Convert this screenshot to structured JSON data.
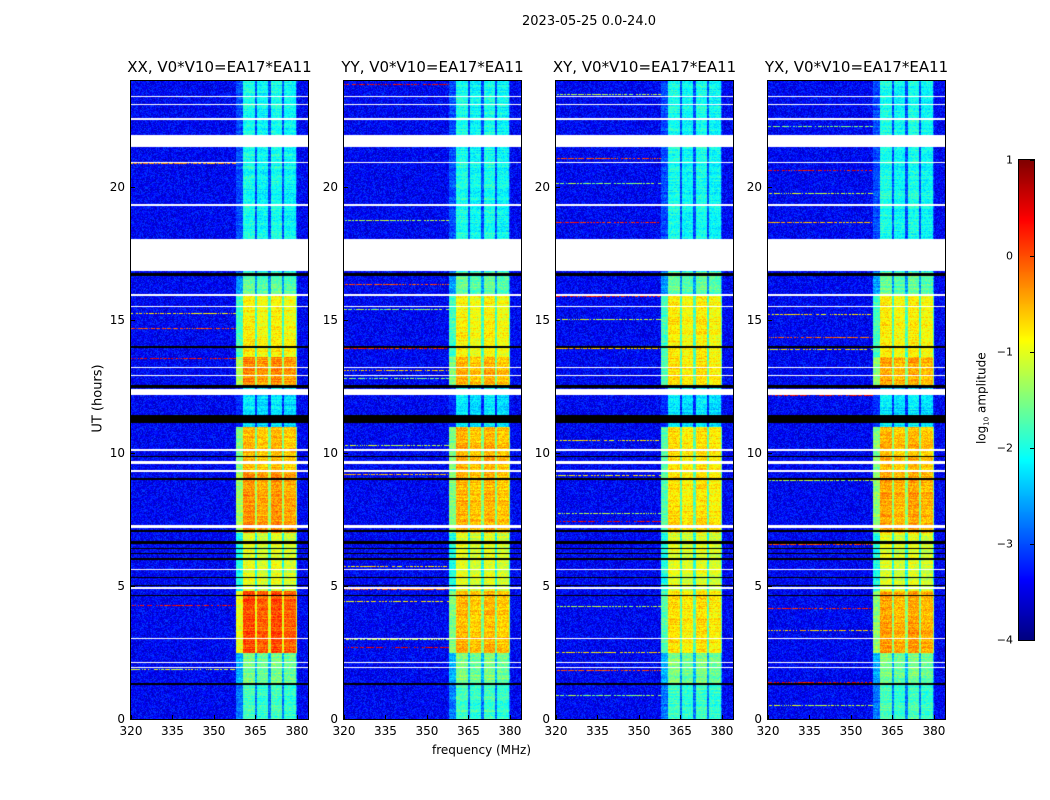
{
  "chart_data": {
    "type": "heatmap",
    "title": "2023-05-25 0.0-24.0",
    "xlabel": "frequency (MHz)",
    "ylabel": "UT (hours)",
    "xlim": [
      320,
      384
    ],
    "ylim": [
      0,
      24
    ],
    "xticks": [
      320,
      335,
      350,
      365,
      380
    ],
    "yticks": [
      0,
      5,
      10,
      15,
      20
    ],
    "colorbar": {
      "label_main": "log",
      "label_sub": "10",
      "label_rest": " amplitude",
      "range": [
        -4,
        1
      ],
      "ticks": [
        1,
        0,
        -1,
        -2,
        -3,
        -4
      ],
      "tick_labels": [
        "1",
        "0",
        "−1",
        "−2",
        "−3",
        "−4"
      ],
      "colormap": "jet"
    },
    "background_level": -3.4,
    "bright_subbands_mhz": [
      [
        360.5,
        364.8
      ],
      [
        365.5,
        369.4
      ],
      [
        370.6,
        374.5
      ],
      [
        375.5,
        379.5
      ]
    ],
    "time_segments": [
      {
        "t": [
          0.0,
          1.3
        ],
        "level": -1.8
      },
      {
        "t": [
          1.3,
          2.5
        ],
        "level": -1.5
      },
      {
        "t": [
          2.5,
          4.8
        ],
        "level": 0.0
      },
      {
        "t": [
          4.8,
          7.0
        ],
        "level": -1.0
      },
      {
        "t": [
          7.0,
          9.2
        ],
        "level": -0.3
      },
      {
        "t": [
          9.2,
          11.0
        ],
        "level": -0.5
      },
      {
        "t": [
          11.0,
          12.5
        ],
        "level": -2.2
      },
      {
        "t": [
          12.5,
          13.6
        ],
        "level": -0.3
      },
      {
        "t": [
          13.6,
          15.9
        ],
        "level": -0.8
      },
      {
        "t": [
          15.9,
          16.8
        ],
        "level": -1.6
      },
      {
        "t": [
          16.8,
          24.0
        ],
        "level": -2.0
      }
    ],
    "flagged_hours": [
      [
        16.85,
        18.05
      ],
      [
        21.5,
        21.95
      ],
      [
        20.9,
        20.95
      ],
      [
        19.3,
        19.36
      ],
      [
        22.55,
        22.6
      ],
      [
        23.1,
        23.15
      ],
      [
        23.4,
        23.45
      ],
      [
        15.9,
        16.0
      ],
      [
        15.5,
        15.55
      ],
      [
        13.2,
        13.25
      ],
      [
        12.9,
        12.95
      ],
      [
        12.2,
        12.4
      ],
      [
        10.1,
        10.15
      ],
      [
        9.6,
        9.7
      ],
      [
        9.3,
        9.35
      ],
      [
        7.2,
        7.3
      ],
      [
        5.6,
        5.65
      ],
      [
        4.9,
        4.95
      ],
      [
        3.0,
        3.05
      ],
      [
        2.1,
        2.15
      ],
      [
        1.9,
        1.95
      ]
    ],
    "zero_hours": [
      [
        1.28,
        1.35
      ],
      [
        4.62,
        4.68
      ],
      [
        5.0,
        5.05
      ],
      [
        5.3,
        5.35
      ],
      [
        6.0,
        6.05
      ],
      [
        6.2,
        6.25
      ],
      [
        6.4,
        6.45
      ],
      [
        6.6,
        6.7
      ],
      [
        7.05,
        7.12
      ],
      [
        9.0,
        9.05
      ],
      [
        9.85,
        9.9
      ],
      [
        11.15,
        11.45
      ],
      [
        12.45,
        12.55
      ],
      [
        13.95,
        14.05
      ],
      [
        16.65,
        16.78
      ]
    ],
    "panels": [
      {
        "title": "XX, V0*V10=EA17*EA11",
        "max_level": 0.3
      },
      {
        "title": "YY, V0*V10=EA17*EA11",
        "max_level": -0.5
      },
      {
        "title": "XY, V0*V10=EA17*EA11",
        "max_level": -0.7
      },
      {
        "title": "YX, V0*V10=EA17*EA11",
        "max_level": -0.4
      }
    ]
  }
}
